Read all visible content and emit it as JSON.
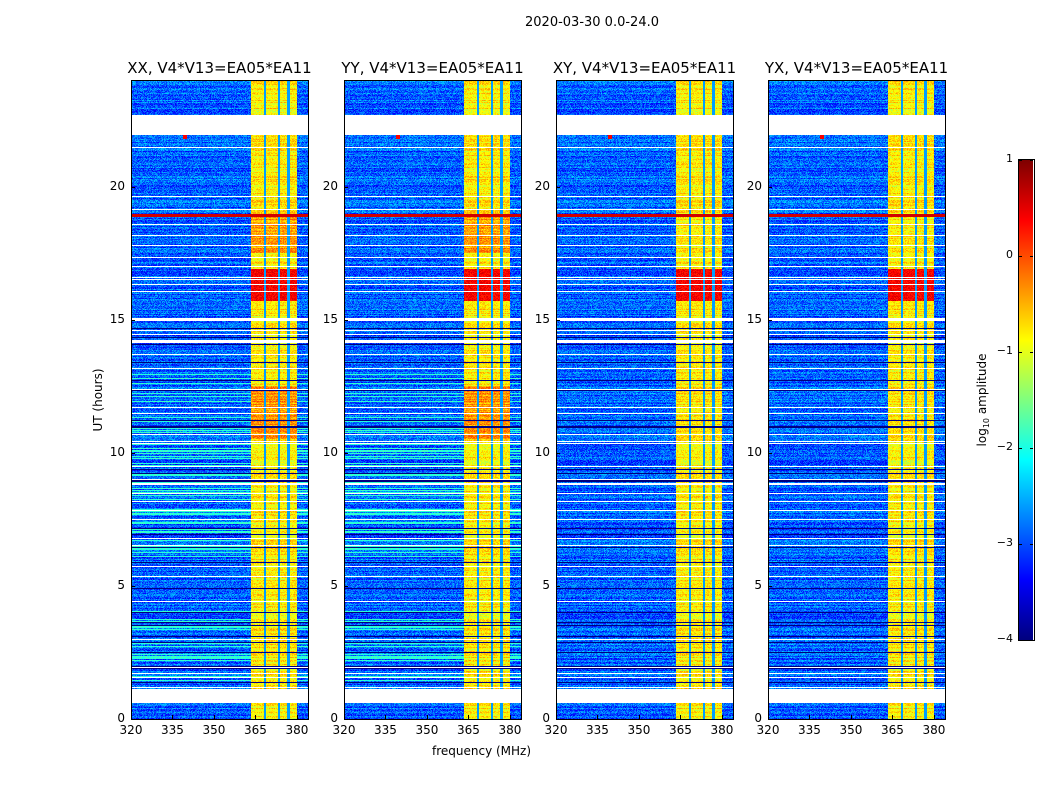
{
  "chart_data": {
    "type": "heatmap",
    "suptitle": "2020-03-30 0.0-24.0",
    "xlabel": "frequency (MHz)",
    "ylabel": "UT (hours)",
    "xlim": [
      320,
      384
    ],
    "ylim": [
      0,
      24
    ],
    "xticks": [
      "320",
      "335",
      "350",
      "365",
      "380"
    ],
    "xtick_values": [
      320,
      335,
      350,
      365,
      380
    ],
    "yticks": [
      "0",
      "5",
      "10",
      "15",
      "20"
    ],
    "ytick_values": [
      0,
      5,
      10,
      15,
      20
    ],
    "panels": [
      {
        "title": "XX, V4*V13=EA05*EA11",
        "pol": "XX"
      },
      {
        "title": "YY, V4*V13=EA05*EA11",
        "pol": "YY"
      },
      {
        "title": "XY, V4*V13=EA05*EA11",
        "pol": "XY"
      },
      {
        "title": "YX, V4*V13=EA05*EA11",
        "pol": "YX"
      }
    ],
    "colorbar": {
      "label": "log10 amplitude",
      "label_main": "log",
      "label_sub": "10",
      "label_rest": " amplitude",
      "colormap": "jet",
      "range": [
        -4,
        1
      ],
      "ticks": [
        "1",
        "0",
        "−1",
        "−2",
        "−3",
        "−4"
      ],
      "tick_values": [
        1,
        0,
        -1,
        -2,
        -3,
        -4
      ]
    },
    "features": {
      "background_level": -2.9,
      "strong_band_mhz": [
        363.5,
        380
      ],
      "subband_edges_mhz": [
        368.5,
        373.5,
        377
      ],
      "strong_band_level": -0.8,
      "bright_interval_hours": [
        15.7,
        16.9
      ],
      "flagged_intervals_hours": [
        [
          0.6,
          1.1
        ],
        [
          14.95,
          15.05
        ],
        [
          21.95,
          22.7
        ]
      ],
      "rfi_row_hours": 18.9
    }
  }
}
